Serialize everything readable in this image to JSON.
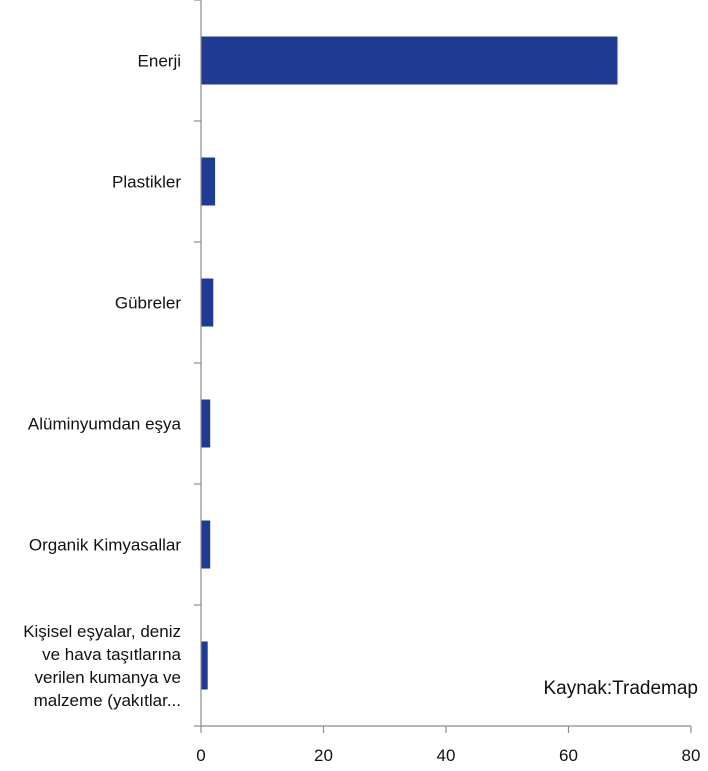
{
  "chart_data": {
    "type": "bar",
    "orientation": "horizontal",
    "categories": [
      [
        "Enerji"
      ],
      [
        "Plastikler"
      ],
      [
        "Gübreler"
      ],
      [
        "Alüminyumdan eşya"
      ],
      [
        "Organik Kimyasallar"
      ],
      [
        "Kişisel eşyalar, deniz",
        "ve hava taşıtlarına",
        "verilen kumanya ve",
        "malzeme (yakıtlar..."
      ]
    ],
    "values": [
      68,
      2.3,
      2.0,
      1.5,
      1.5,
      1.1
    ],
    "xlim": [
      0,
      80
    ],
    "xticks": [
      "0",
      "20",
      "40",
      "60",
      "80"
    ],
    "bar_color": "#1f3a93",
    "axis_color": "#8c8c8c",
    "grid": false,
    "annotation": "Kaynak:Trademap"
  }
}
